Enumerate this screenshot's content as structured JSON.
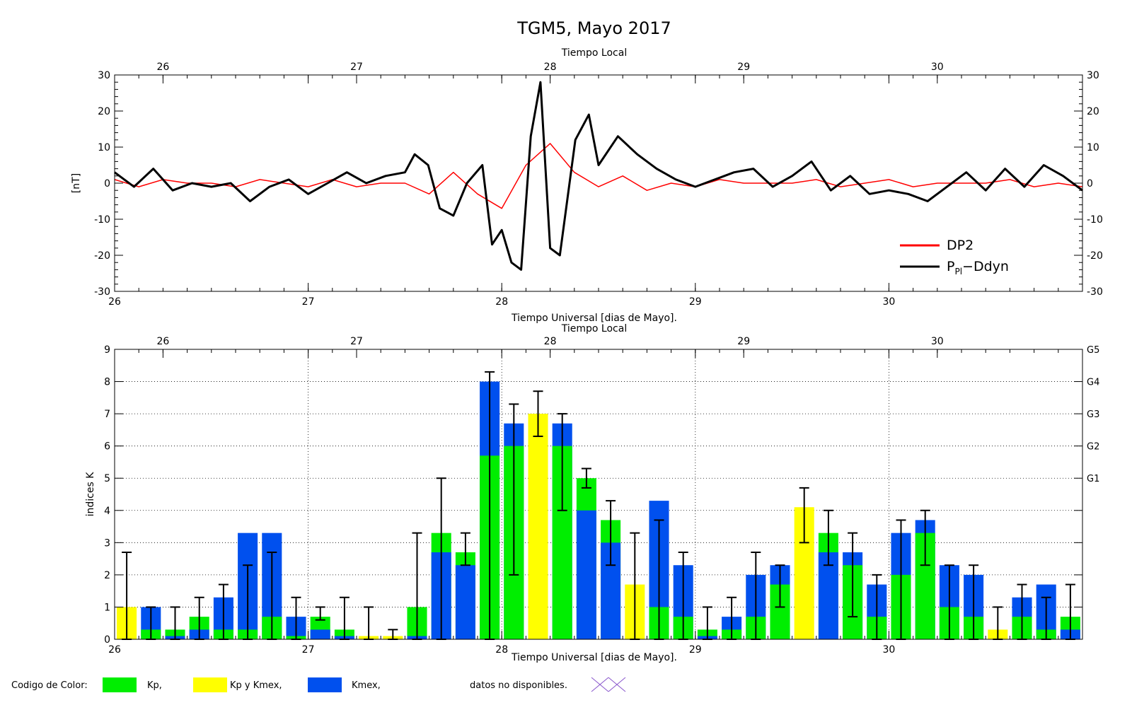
{
  "title": "TGM5, Mayo 2017",
  "colors": {
    "dp2": "#ff0000",
    "ppi_ddyn": "#000000",
    "kp": "#00ee00",
    "kp_kmex": "#ffff00",
    "kmex": "#0050ee",
    "error_bar": "#000000",
    "no_data": "#8855cc"
  },
  "legend_colors": {
    "label": "Codigo de Color:",
    "kp": "Kp,",
    "kp_kmex": "Kp y Kmex,",
    "kmex": "Kmex,",
    "no_data": "datos no disponibles."
  },
  "chart_data": [
    {
      "type": "line",
      "top_axis_label": "Tiempo Local",
      "xlabel": "Tiempo Universal [dias de Mayo].",
      "ylabel": "[nT]",
      "xlim": [
        26,
        31
      ],
      "ylim": [
        -30,
        30
      ],
      "top_ticks": [
        "26",
        "27",
        "28",
        "29",
        "30"
      ],
      "top_tick_positions": [
        26.25,
        27.25,
        28.25,
        29.25,
        30.25
      ],
      "bottom_ticks": [
        "26",
        "27",
        "28",
        "29",
        "30"
      ],
      "y_ticks": [
        -30,
        -20,
        -10,
        0,
        10,
        20,
        30
      ],
      "legend_position": "bottom-right",
      "series": [
        {
          "name": "DP2",
          "color": "#ff0000",
          "x": [
            26.0,
            26.125,
            26.25,
            26.375,
            26.5,
            26.625,
            26.75,
            26.875,
            27.0,
            27.125,
            27.25,
            27.375,
            27.5,
            27.625,
            27.75,
            27.875,
            28.0,
            28.125,
            28.25,
            28.375,
            28.5,
            28.625,
            28.75,
            28.875,
            29.0,
            29.125,
            29.25,
            29.375,
            29.5,
            29.625,
            29.75,
            29.875,
            30.0,
            30.125,
            30.25,
            30.375,
            30.5,
            30.625,
            30.75,
            30.875,
            31.0
          ],
          "values": [
            1,
            -1,
            1,
            0,
            0,
            -1,
            1,
            0,
            -1,
            1,
            -1,
            0,
            0,
            -3,
            3,
            -3,
            -7,
            5,
            11,
            3,
            -1,
            2,
            -2,
            0,
            -1,
            1,
            0,
            0,
            0,
            1,
            -1,
            0,
            1,
            -1,
            0,
            0,
            0,
            1,
            -1,
            0,
            -1
          ]
        },
        {
          "name": "PPI-Ddyn",
          "color": "#000000",
          "x": [
            26.0,
            26.1,
            26.2,
            26.3,
            26.4,
            26.5,
            26.6,
            26.7,
            26.8,
            26.9,
            27.0,
            27.1,
            27.2,
            27.3,
            27.4,
            27.5,
            27.55,
            27.62,
            27.68,
            27.75,
            27.82,
            27.9,
            27.95,
            28.0,
            28.05,
            28.1,
            28.15,
            28.2,
            28.25,
            28.3,
            28.38,
            28.45,
            28.5,
            28.6,
            28.7,
            28.8,
            28.9,
            29.0,
            29.1,
            29.2,
            29.3,
            29.4,
            29.5,
            29.6,
            29.7,
            29.8,
            29.9,
            30.0,
            30.1,
            30.2,
            30.3,
            30.4,
            30.5,
            30.6,
            30.7,
            30.8,
            30.9,
            31.0
          ],
          "values": [
            3,
            -1,
            4,
            -2,
            0,
            -1,
            0,
            -5,
            -1,
            1,
            -3,
            0,
            3,
            0,
            2,
            3,
            8,
            5,
            -7,
            -9,
            0,
            5,
            -17,
            -13,
            -22,
            -24,
            13,
            28,
            -18,
            -20,
            12,
            19,
            5,
            13,
            8,
            4,
            1,
            -1,
            1,
            3,
            4,
            -1,
            2,
            6,
            -2,
            2,
            -3,
            -2,
            -3,
            -5,
            -1,
            3,
            -2,
            4,
            -1,
            5,
            2,
            -2
          ]
        }
      ]
    },
    {
      "type": "bar",
      "top_axis_label": "Tiempo Local",
      "xlabel": "Tiempo Universal [dias de Mayo].",
      "ylabel": "indices K",
      "xlim": [
        26,
        31
      ],
      "ylim": [
        0,
        9
      ],
      "top_ticks": [
        "26",
        "27",
        "28",
        "29",
        "30"
      ],
      "top_tick_positions": [
        26.25,
        27.25,
        28.25,
        29.25,
        30.25
      ],
      "bottom_ticks": [
        "26",
        "27",
        "28",
        "29",
        "30"
      ],
      "y_ticks": [
        0,
        1,
        2,
        3,
        4,
        5,
        6,
        7,
        8,
        9
      ],
      "right_axis_labels": [
        {
          "value": 5,
          "label": "G1"
        },
        {
          "value": 6,
          "label": "G2"
        },
        {
          "value": 7,
          "label": "G3"
        },
        {
          "value": 8,
          "label": "G4"
        },
        {
          "value": 9,
          "label": "G5"
        }
      ],
      "bin_width_days": 0.125,
      "kp": [
        1.0,
        0.3,
        0.3,
        0.7,
        0.3,
        0.3,
        0.7,
        0.1,
        0.7,
        0.3,
        0.1,
        0.1,
        1.0,
        3.3,
        2.7,
        5.7,
        6.0,
        7.0,
        6.0,
        5.0,
        3.7,
        1.7,
        1.0,
        0.7,
        0.3,
        0.3,
        0.7,
        1.7,
        4.1,
        3.3,
        2.3,
        0.7,
        2.0,
        3.3,
        1.0,
        0.7,
        0.3,
        0.7,
        0.3,
        0.7
      ],
      "kmex": [
        1.0,
        1.0,
        0.1,
        0.3,
        1.3,
        3.3,
        3.3,
        0.7,
        0.3,
        0.1,
        0.1,
        0.1,
        0.1,
        2.7,
        2.3,
        8.0,
        6.7,
        7.0,
        6.7,
        4.0,
        3.0,
        1.7,
        4.3,
        2.3,
        0.1,
        0.7,
        2.0,
        2.3,
        4.1,
        2.7,
        2.7,
        1.7,
        3.3,
        3.7,
        2.3,
        2.0,
        0.3,
        1.3,
        1.7,
        0.3
      ],
      "err_low": [
        0,
        0,
        0,
        0,
        0,
        0,
        0,
        0,
        0.6,
        0,
        0,
        0,
        0,
        0,
        2.3,
        0,
        2.0,
        6.3,
        4.0,
        4.7,
        2.3,
        0,
        0,
        0,
        0,
        0,
        0,
        1.0,
        3.0,
        2.3,
        0.7,
        0,
        0,
        2.3,
        0,
        0,
        0,
        0,
        0,
        0
      ],
      "err_high": [
        2.7,
        1.0,
        1.0,
        1.3,
        1.7,
        2.3,
        2.7,
        1.3,
        1.0,
        1.3,
        1.0,
        0.3,
        3.3,
        5.0,
        3.3,
        8.3,
        7.3,
        7.7,
        7.0,
        5.3,
        4.3,
        3.3,
        3.7,
        2.7,
        1.0,
        1.3,
        2.7,
        2.3,
        4.7,
        4.0,
        3.3,
        2.0,
        3.7,
        4.0,
        2.3,
        2.3,
        1.0,
        1.7,
        1.3,
        1.7
      ]
    }
  ]
}
